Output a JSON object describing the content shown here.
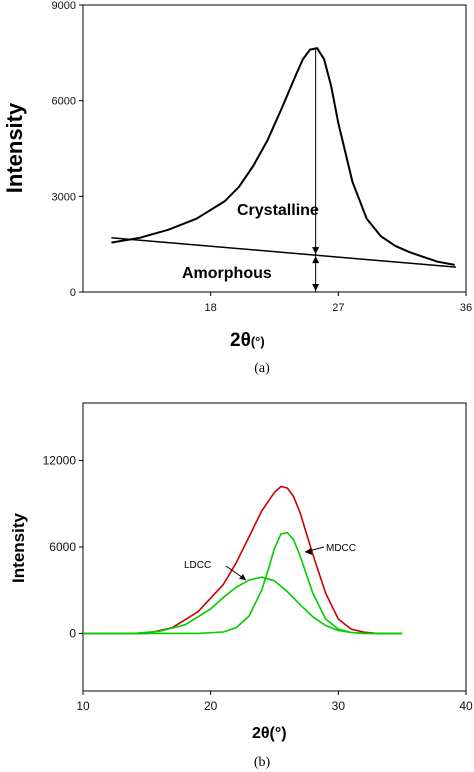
{
  "chart_data": [
    {
      "type": "line",
      "panel_caption": "(a)",
      "ylabel": "Intensity",
      "xlabel": "2θ",
      "xunit": "(°)",
      "xlim": [
        9,
        36
      ],
      "ylim": [
        0,
        9000
      ],
      "xticks": [
        18,
        27,
        36
      ],
      "yticks": [
        0,
        3000,
        6000,
        9000
      ],
      "series": [
        {
          "color": "#000000",
          "x": [
            11.0,
            13.0,
            15.0,
            17.0,
            19.0,
            20.0,
            21.0,
            22.0,
            23.0,
            24.0,
            24.5,
            25.0,
            25.5,
            26.0,
            26.5,
            27.0,
            28.0,
            29.0,
            30.0,
            31.0,
            32.0,
            33.0,
            34.0,
            35.2
          ],
          "y": [
            1550,
            1700,
            1950,
            2300,
            2850,
            3300,
            3950,
            4750,
            5750,
            6800,
            7300,
            7600,
            7650,
            7300,
            6450,
            5300,
            3450,
            2300,
            1750,
            1450,
            1250,
            1100,
            950,
            850
          ]
        }
      ],
      "baseline": {
        "x": [
          11,
          35.3
        ],
        "y": [
          1700,
          780
        ]
      },
      "arrow_x": 25.4,
      "annotations": [
        "Crystalline",
        "Amorphous"
      ]
    },
    {
      "type": "line",
      "panel_caption": "(b)",
      "ylabel": "Intensity",
      "xlabel": "2θ",
      "xunit": "(°)",
      "xlim": [
        10,
        40
      ],
      "ylim": [
        -4000,
        16000
      ],
      "xticks": [
        10,
        20,
        30,
        40
      ],
      "yticks": [
        0,
        6000,
        12000
      ],
      "series": [
        {
          "color": "#cc0000",
          "x": [
            10,
            15,
            17,
            19,
            21,
            22,
            23,
            24,
            25,
            25.5,
            26,
            26.5,
            27,
            28,
            29,
            30,
            31,
            32,
            33,
            35
          ],
          "y": [
            0,
            0,
            400,
            1500,
            3400,
            4900,
            6700,
            8500,
            9800,
            10200,
            10100,
            9500,
            8400,
            5500,
            2800,
            1000,
            300,
            80,
            0,
            0
          ]
        },
        {
          "color": "#00cc00",
          "x": [
            10,
            14,
            16,
            18,
            20,
            21,
            22,
            23,
            24,
            25,
            26,
            27,
            28,
            29,
            30,
            31,
            32,
            33,
            35
          ],
          "y": [
            0,
            0,
            150,
            600,
            1700,
            2500,
            3200,
            3700,
            3900,
            3650,
            2900,
            2000,
            1150,
            550,
            200,
            60,
            10,
            0,
            0
          ]
        },
        {
          "color": "#00cc00",
          "x": [
            10,
            19,
            21,
            22,
            23,
            24,
            24.5,
            25,
            25.5,
            26,
            26.5,
            27,
            27.5,
            28,
            29,
            30,
            31,
            32,
            35
          ],
          "y": [
            0,
            0,
            100,
            400,
            1200,
            3000,
            4400,
            5900,
            6900,
            7000,
            6500,
            5400,
            4100,
            2800,
            1000,
            300,
            60,
            0,
            0
          ]
        }
      ],
      "annotations": [
        "LDCC",
        "MDCC"
      ]
    }
  ]
}
